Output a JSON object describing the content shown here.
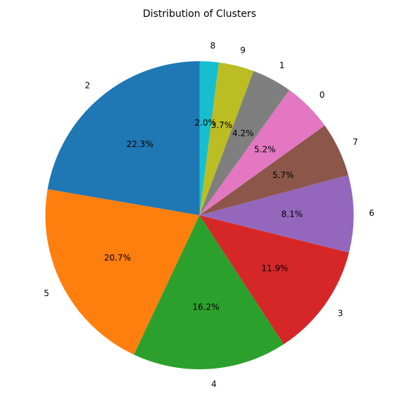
{
  "chart_data": {
    "type": "pie",
    "title": "Distribution of Clusters",
    "categories": [
      "2",
      "5",
      "4",
      "3",
      "6",
      "7",
      "0",
      "1",
      "9",
      "8"
    ],
    "values": [
      22.3,
      20.7,
      16.2,
      11.9,
      8.1,
      5.7,
      5.2,
      4.2,
      3.7,
      2.0
    ],
    "percent_labels": [
      "22.3%",
      "20.7%",
      "16.2%",
      "11.9%",
      "8.1%",
      "5.7%",
      "5.2%",
      "4.2%",
      "3.7%",
      "2.0%"
    ],
    "colors": [
      "#1f77b4",
      "#ff7f0e",
      "#2ca02c",
      "#d62728",
      "#9467bd",
      "#8c564b",
      "#e377c2",
      "#7f7f7f",
      "#bcbd22",
      "#17becf"
    ],
    "start_angle_deg": 90,
    "direction": "counterclockwise",
    "legend": "none"
  }
}
